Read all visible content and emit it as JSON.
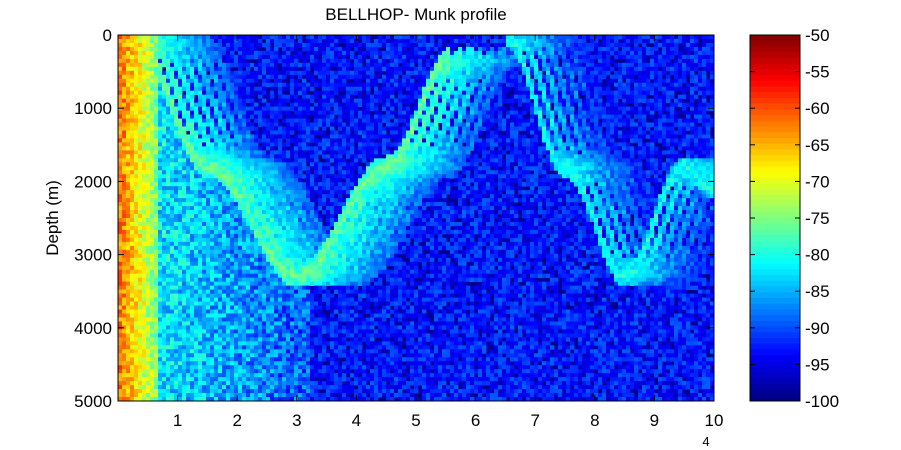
{
  "chart_data": {
    "type": "heatmap",
    "title": "BELLHOP- Munk profile",
    "xlabel": "",
    "ylabel": "Depth (m)",
    "x_exponent_label": "4",
    "xlim": [
      0,
      10
    ],
    "ylim": [
      0,
      5000
    ],
    "y_reversed": true,
    "x_ticks": [
      1,
      2,
      3,
      4,
      5,
      6,
      7,
      8,
      9,
      10
    ],
    "x_tick_labels": [
      "1",
      "2",
      "3",
      "4",
      "5",
      "6",
      "7",
      "8",
      "9",
      "10"
    ],
    "y_ticks": [
      0,
      1000,
      2000,
      3000,
      4000,
      5000
    ],
    "y_tick_labels": [
      "0",
      "1000",
      "2000",
      "3000",
      "4000",
      "5000"
    ],
    "colorbar": {
      "colormap": "jet",
      "range": [
        -100,
        -50
      ],
      "ticks": [
        -50,
        -55,
        -60,
        -65,
        -70,
        -75,
        -80,
        -85,
        -90,
        -95,
        -100
      ],
      "tick_labels": [
        "-50",
        "-55",
        "-60",
        "-65",
        "-70",
        "-75",
        "-80",
        "-85",
        "-90",
        "-95",
        "-100"
      ]
    },
    "background_level": -93,
    "source_column": {
      "x": 0.05,
      "level": -62
    },
    "convergence_zone_arcs": [
      {
        "x": [
          0.25,
          1.5,
          3.0,
          4.5,
          5.6
        ],
        "depth": [
          0,
          1800,
          3300,
          1800,
          300
        ],
        "level": -76
      },
      {
        "x": [
          6.5,
          7.5,
          8.5,
          9.5,
          10.0
        ],
        "depth": [
          0,
          1800,
          3300,
          1800,
          2100
        ],
        "level": -80
      }
    ]
  }
}
